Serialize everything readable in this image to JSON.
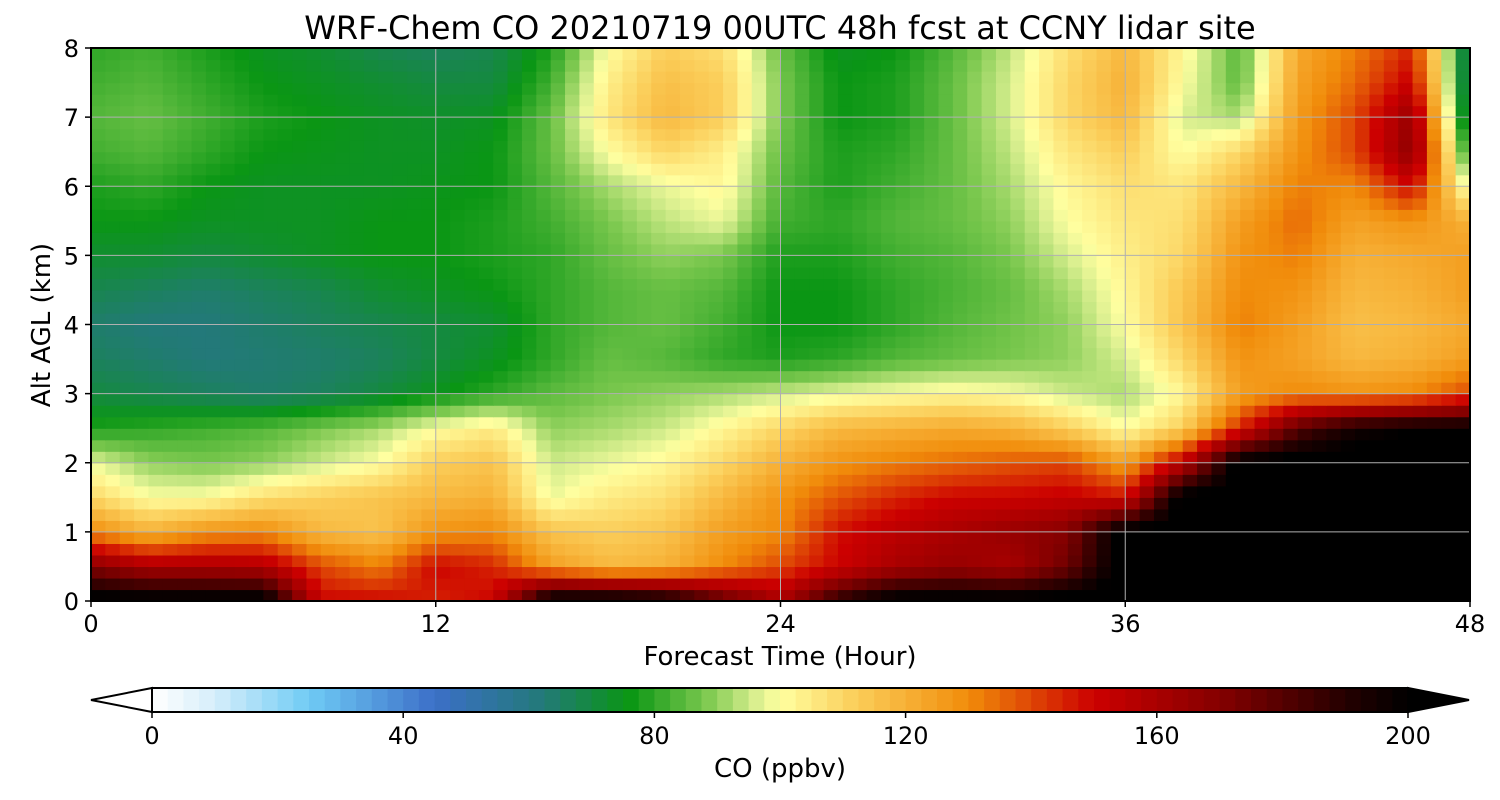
{
  "chart_data": {
    "type": "heatmap",
    "title": "WRF-Chem CO  20210719 00UTC 48h fcst at CCNY lidar site",
    "xlabel": "Forecast Time (Hour)",
    "ylabel": "Alt AGL (km)",
    "xlim": [
      0,
      48
    ],
    "ylim": [
      0,
      8
    ],
    "x_ticks": [
      0,
      12,
      24,
      36,
      48
    ],
    "y_ticks": [
      0,
      1,
      2,
      3,
      4,
      5,
      6,
      7,
      8
    ],
    "grid": true,
    "x": [
      0,
      2,
      4,
      6,
      8,
      10,
      12,
      14,
      16,
      18,
      20,
      22,
      24,
      26,
      28,
      30,
      32,
      34,
      36,
      38,
      40,
      42,
      44,
      46,
      48
    ],
    "y": [
      0,
      0.5,
      1,
      1.5,
      2,
      2.5,
      3,
      3.5,
      4,
      4.5,
      5,
      5.5,
      6,
      6.5,
      7,
      7.5,
      8
    ],
    "z": [
      [
        205,
        205,
        205,
        205,
        150,
        150,
        145,
        150,
        205,
        205,
        200,
        180,
        160,
        190,
        205,
        205,
        205,
        205,
        205,
        205,
        205,
        205,
        205,
        205,
        205
      ],
      [
        170,
        160,
        160,
        158,
        140,
        132,
        150,
        145,
        125,
        118,
        120,
        130,
        140,
        150,
        160,
        165,
        160,
        175,
        205,
        205,
        205,
        205,
        205,
        205,
        205
      ],
      [
        130,
        120,
        128,
        130,
        118,
        115,
        128,
        130,
        115,
        112,
        115,
        125,
        130,
        148,
        155,
        160,
        165,
        170,
        205,
        205,
        205,
        205,
        205,
        205,
        205
      ],
      [
        110,
        100,
        100,
        108,
        112,
        115,
        118,
        120,
        98,
        105,
        108,
        118,
        128,
        138,
        145,
        150,
        150,
        152,
        148,
        205,
        205,
        205,
        205,
        205,
        205
      ],
      [
        98,
        90,
        88,
        90,
        95,
        100,
        112,
        115,
        95,
        98,
        102,
        110,
        120,
        128,
        132,
        135,
        138,
        140,
        125,
        155,
        205,
        205,
        205,
        205,
        205
      ],
      [
        78,
        80,
        82,
        84,
        88,
        92,
        100,
        105,
        90,
        92,
        95,
        102,
        110,
        118,
        120,
        122,
        120,
        112,
        100,
        112,
        145,
        180,
        195,
        200,
        200
      ],
      [
        70,
        68,
        66,
        64,
        66,
        70,
        75,
        80,
        85,
        88,
        90,
        92,
        95,
        98,
        100,
        102,
        100,
        95,
        92,
        102,
        125,
        130,
        128,
        130,
        140
      ],
      [
        66,
        64,
        62,
        63,
        64,
        66,
        70,
        74,
        80,
        86,
        84,
        80,
        78,
        80,
        84,
        86,
        88,
        90,
        96,
        110,
        128,
        124,
        118,
        120,
        125
      ],
      [
        64,
        62,
        62,
        64,
        66,
        68,
        70,
        72,
        80,
        84,
        86,
        82,
        76,
        76,
        80,
        84,
        87,
        90,
        100,
        115,
        132,
        125,
        116,
        118,
        122
      ],
      [
        68,
        66,
        64,
        66,
        68,
        72,
        74,
        76,
        80,
        84,
        86,
        84,
        76,
        76,
        80,
        83,
        86,
        92,
        102,
        114,
        130,
        128,
        118,
        120,
        125
      ],
      [
        72,
        72,
        70,
        72,
        74,
        76,
        76,
        78,
        80,
        86,
        90,
        88,
        78,
        78,
        82,
        84,
        88,
        96,
        104,
        110,
        128,
        132,
        120,
        122,
        125
      ],
      [
        76,
        76,
        74,
        74,
        74,
        76,
        76,
        78,
        82,
        88,
        94,
        98,
        82,
        80,
        84,
        86,
        90,
        100,
        106,
        108,
        125,
        135,
        124,
        128,
        120
      ],
      [
        78,
        80,
        76,
        74,
        74,
        74,
        75,
        76,
        84,
        92,
        98,
        102,
        84,
        78,
        82,
        86,
        92,
        102,
        108,
        106,
        118,
        132,
        130,
        150,
        95
      ],
      [
        82,
        84,
        80,
        76,
        75,
        74,
        74,
        76,
        86,
        100,
        110,
        104,
        86,
        78,
        80,
        86,
        94,
        106,
        112,
        100,
        110,
        128,
        140,
        168,
        75
      ],
      [
        84,
        86,
        82,
        78,
        76,
        74,
        73,
        74,
        86,
        106,
        118,
        112,
        88,
        76,
        78,
        86,
        96,
        110,
        118,
        96,
        92,
        126,
        140,
        165,
        62
      ],
      [
        82,
        84,
        80,
        76,
        74,
        72,
        70,
        70,
        82,
        104,
        116,
        112,
        88,
        76,
        78,
        86,
        96,
        110,
        120,
        100,
        85,
        124,
        135,
        152,
        60
      ],
      [
        80,
        82,
        78,
        74,
        72,
        68,
        66,
        68,
        78,
        100,
        112,
        108,
        86,
        74,
        76,
        84,
        94,
        108,
        118,
        102,
        84,
        122,
        132,
        145,
        60
      ]
    ],
    "colorbar": {
      "label": "CO  (ppbv)",
      "min": 0,
      "max": 200,
      "ticks": [
        0,
        40,
        80,
        120,
        160,
        200
      ],
      "extend": "both",
      "stops": [
        {
          "v": 0,
          "c": "#ffffff"
        },
        {
          "v": 10,
          "c": "#d6eefa"
        },
        {
          "v": 25,
          "c": "#6fcbf5"
        },
        {
          "v": 45,
          "c": "#3c6fc8"
        },
        {
          "v": 62,
          "c": "#23797a"
        },
        {
          "v": 76,
          "c": "#0a9614"
        },
        {
          "v": 88,
          "c": "#79c74d"
        },
        {
          "v": 96,
          "c": "#d7ee8e"
        },
        {
          "v": 100,
          "c": "#ffffa0"
        },
        {
          "v": 112,
          "c": "#fbce5a"
        },
        {
          "v": 130,
          "c": "#f18c0a"
        },
        {
          "v": 150,
          "c": "#cc0000"
        },
        {
          "v": 170,
          "c": "#850000"
        },
        {
          "v": 190,
          "c": "#250000"
        },
        {
          "v": 200,
          "c": "#000000"
        }
      ]
    }
  }
}
